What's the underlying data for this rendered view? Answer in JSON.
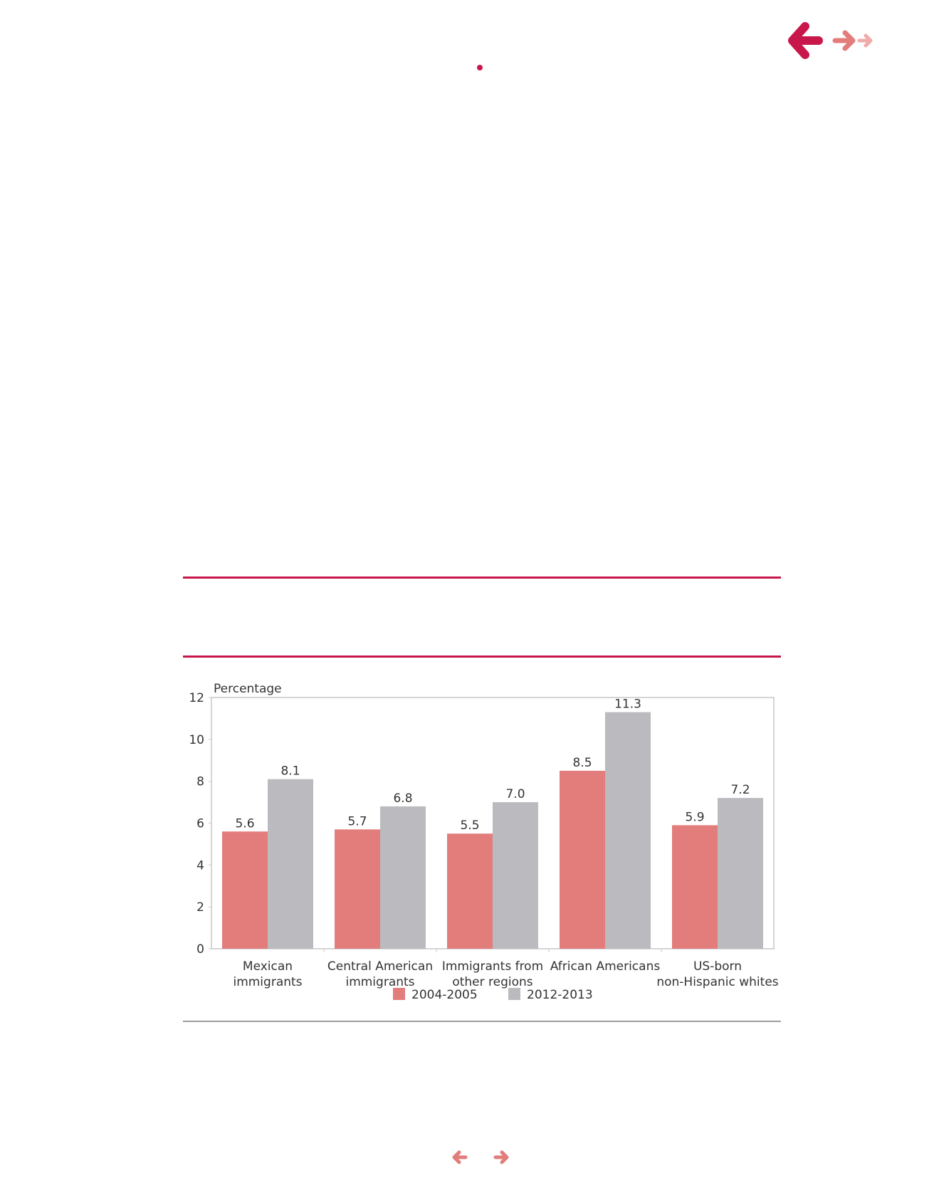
{
  "colors": {
    "accent": "#c8174a",
    "series_2004": "#e27d7c",
    "series_2012": "#bbbbbf",
    "rule_gray": "#9c9c9c"
  },
  "navigation": {
    "back_icon": "arrow-left-icon",
    "forward_icon": "arrow-right-icon",
    "forward_small_icon": "arrow-right-small-icon"
  },
  "chart_data": {
    "type": "bar",
    "ylabel": "Percentage",
    "ylim": [
      0,
      12
    ],
    "yticks": [
      "0",
      "2",
      "4",
      "6",
      "8",
      "10",
      "12"
    ],
    "categories": [
      [
        "Mexican",
        "immigrants"
      ],
      [
        "Central American",
        "immigrants"
      ],
      [
        "Immigrants from",
        "other regions"
      ],
      [
        "African Americans"
      ],
      [
        "US-born",
        "non-Hispanic whites"
      ]
    ],
    "series": [
      {
        "name": "2004-2005",
        "values": [
          5.6,
          5.7,
          5.5,
          8.5,
          5.9
        ],
        "labels": [
          "5.6",
          "5.7",
          "5.5",
          "8.5",
          "5.9"
        ]
      },
      {
        "name": "2012-2013",
        "values": [
          8.1,
          6.8,
          7.0,
          11.3,
          7.2
        ],
        "labels": [
          "8.1",
          "6.8",
          "7.0",
          "11.3",
          "7.2"
        ]
      }
    ],
    "grid": false,
    "legend": "bottom"
  }
}
